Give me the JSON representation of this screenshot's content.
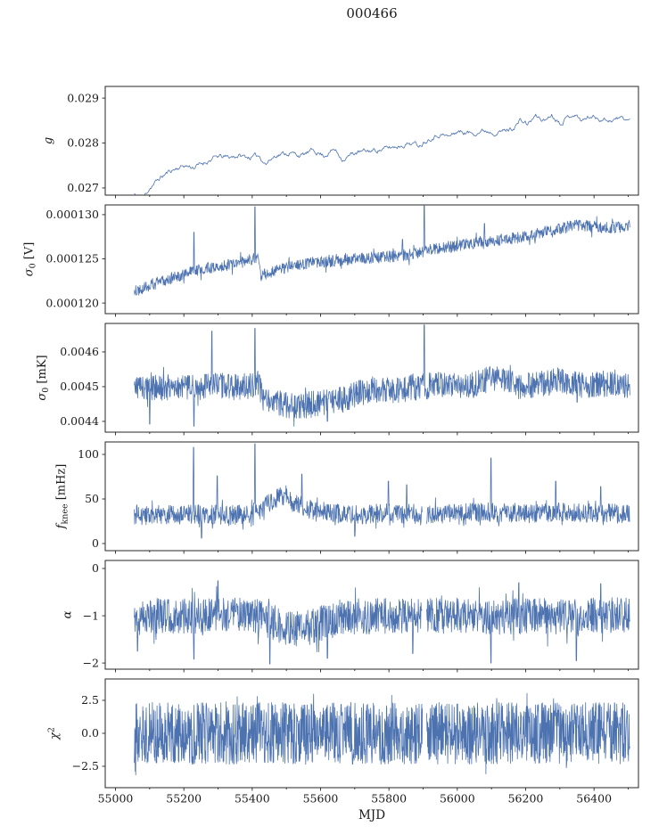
{
  "title": "000466",
  "chart_data": {
    "type": "line",
    "title": "000466",
    "xlabel": "MJD",
    "line_color": "#4c72b0",
    "axis_color": "#262626",
    "xlim": [
      54970,
      56530
    ],
    "data_range": [
      55055,
      56505
    ],
    "x_major_ticks": [
      55000,
      55200,
      55400,
      55600,
      55800,
      56000,
      56200,
      56400
    ],
    "x_minor_step": 100,
    "legend": "none",
    "grid": false,
    "panels": [
      {
        "ylabel": [
          {
            "t": "g",
            "it": 1
          }
        ],
        "ylim": [
          0.02684,
          0.02926
        ],
        "yticks": [
          {
            "v": 0.027,
            "label": "0.027"
          },
          {
            "v": 0.028,
            "label": "0.028"
          },
          {
            "v": 0.029,
            "label": "0.029"
          }
        ],
        "seed": 11,
        "samples": 620,
        "stroke": 0.8,
        "noise_amp": 5e-05,
        "noise_corr": 0.72,
        "tail_p": 0,
        "tail_mult": 1,
        "trend": [
          [
            55055,
            0.02688
          ],
          [
            55070,
            0.0267
          ],
          [
            55085,
            0.02682
          ],
          [
            55100,
            0.027
          ],
          [
            55130,
            0.02722
          ],
          [
            55160,
            0.02738
          ],
          [
            55200,
            0.0275
          ],
          [
            55230,
            0.02746
          ],
          [
            55270,
            0.0276
          ],
          [
            55300,
            0.0277
          ],
          [
            55330,
            0.02768
          ],
          [
            55360,
            0.02772
          ],
          [
            55395,
            0.02768
          ],
          [
            55420,
            0.02772
          ],
          [
            55440,
            0.02754
          ],
          [
            55470,
            0.02774
          ],
          [
            55510,
            0.02778
          ],
          [
            55545,
            0.02772
          ],
          [
            55580,
            0.02784
          ],
          [
            55610,
            0.02772
          ],
          [
            55640,
            0.02786
          ],
          [
            55665,
            0.02764
          ],
          [
            55700,
            0.02778
          ],
          [
            55740,
            0.02782
          ],
          [
            55780,
            0.02786
          ],
          [
            55820,
            0.02792
          ],
          [
            55860,
            0.028
          ],
          [
            55890,
            0.02796
          ],
          [
            55920,
            0.02812
          ],
          [
            55950,
            0.0282
          ],
          [
            55975,
            0.02814
          ],
          [
            56000,
            0.02826
          ],
          [
            56040,
            0.02822
          ],
          [
            56080,
            0.02828
          ],
          [
            56120,
            0.02824
          ],
          [
            56160,
            0.02832
          ],
          [
            56185,
            0.0285
          ],
          [
            56205,
            0.02842
          ],
          [
            56230,
            0.0286
          ],
          [
            56255,
            0.0285
          ],
          [
            56275,
            0.02864
          ],
          [
            56300,
            0.02846
          ],
          [
            56320,
            0.02856
          ],
          [
            56340,
            0.02866
          ],
          [
            56365,
            0.0285
          ],
          [
            56390,
            0.0286
          ],
          [
            56420,
            0.02854
          ],
          [
            56450,
            0.02851
          ],
          [
            56480,
            0.02856
          ],
          [
            56505,
            0.0285
          ]
        ],
        "spikes": [],
        "gaps": []
      },
      {
        "ylabel": [
          {
            "t": "σ",
            "it": 1
          },
          {
            "t": "0",
            "sub": 1
          },
          {
            "t": " [V]"
          }
        ],
        "ylim": [
          0.0001188,
          0.0001311
        ],
        "yticks": [
          {
            "v": 0.00012,
            "label": "0.000120"
          },
          {
            "v": 0.000125,
            "label": "0.000125"
          },
          {
            "v": 0.00013,
            "label": "0.000130"
          }
        ],
        "seed": 22,
        "samples": 1300,
        "stroke": 0.8,
        "noise_amp": 6.5e-07,
        "tail_p": 0.04,
        "tail_mult": 1.9,
        "trend": [
          [
            55055,
            0.0001213
          ],
          [
            55090,
            0.0001219
          ],
          [
            55130,
            0.0001224
          ],
          [
            55170,
            0.0001229
          ],
          [
            55210,
            0.0001234
          ],
          [
            55250,
            0.0001238
          ],
          [
            55290,
            0.0001241
          ],
          [
            55330,
            0.0001243
          ],
          [
            55370,
            0.0001246
          ],
          [
            55405,
            0.000125
          ],
          [
            55418,
            0.0001252
          ],
          [
            55424,
            0.0001231
          ],
          [
            55460,
            0.0001236
          ],
          [
            55500,
            0.000124
          ],
          [
            55540,
            0.0001244
          ],
          [
            55580,
            0.0001246
          ],
          [
            55620,
            0.0001247
          ],
          [
            55660,
            0.0001248
          ],
          [
            55700,
            0.000125
          ],
          [
            55740,
            0.0001251
          ],
          [
            55780,
            0.0001252
          ],
          [
            55820,
            0.0001253
          ],
          [
            55860,
            0.0001255
          ],
          [
            55900,
            0.0001258
          ],
          [
            55940,
            0.0001262
          ],
          [
            55980,
            0.0001264
          ],
          [
            56020,
            0.0001266
          ],
          [
            56060,
            0.0001268
          ],
          [
            56100,
            0.000127
          ],
          [
            56140,
            0.0001272
          ],
          [
            56180,
            0.0001274
          ],
          [
            56220,
            0.0001277
          ],
          [
            56260,
            0.0001281
          ],
          [
            56300,
            0.0001285
          ],
          [
            56340,
            0.0001288
          ],
          [
            56380,
            0.0001287
          ],
          [
            56420,
            0.0001286
          ],
          [
            56460,
            0.0001285
          ],
          [
            56505,
            0.0001288
          ]
        ],
        "spikes": [
          [
            55230,
            0.000128
          ],
          [
            55408,
            0.0001309
          ],
          [
            55840,
            0.0001272
          ],
          [
            55903,
            0.000131
          ],
          [
            56080,
            0.000129
          ]
        ],
        "gaps": []
      },
      {
        "ylabel": [
          {
            "t": "σ",
            "it": 1
          },
          {
            "t": "0",
            "sub": 1
          },
          {
            "t": " [mK]"
          }
        ],
        "ylim": [
          0.004369,
          0.004682
        ],
        "yticks": [
          {
            "v": 0.0044,
            "label": "0.0044"
          },
          {
            "v": 0.0045,
            "label": "0.0045"
          },
          {
            "v": 0.0046,
            "label": "0.0046"
          }
        ],
        "seed": 33,
        "samples": 1300,
        "stroke": 0.8,
        "noise_amp": 3.8e-05,
        "tail_p": 0.03,
        "tail_mult": 1.6,
        "trend": [
          [
            55055,
            0.0045
          ],
          [
            55120,
            0.004495
          ],
          [
            55180,
            0.0045
          ],
          [
            55240,
            0.004495
          ],
          [
            55300,
            0.004503
          ],
          [
            55360,
            0.004498
          ],
          [
            55405,
            0.004505
          ],
          [
            55418,
            0.00451
          ],
          [
            55428,
            0.004468
          ],
          [
            55460,
            0.004455
          ],
          [
            55500,
            0.004448
          ],
          [
            55540,
            0.004444
          ],
          [
            55580,
            0.00445
          ],
          [
            55620,
            0.004455
          ],
          [
            55660,
            0.004462
          ],
          [
            55700,
            0.004476
          ],
          [
            55740,
            0.00449
          ],
          [
            55780,
            0.004494
          ],
          [
            55820,
            0.00449
          ],
          [
            55860,
            0.004496
          ],
          [
            55900,
            0.0045
          ],
          [
            55950,
            0.004504
          ],
          [
            56000,
            0.0045
          ],
          [
            56050,
            0.004506
          ],
          [
            56090,
            0.00452
          ],
          [
            56120,
            0.004524
          ],
          [
            56150,
            0.00451
          ],
          [
            56190,
            0.0045
          ],
          [
            56230,
            0.004506
          ],
          [
            56270,
            0.004512
          ],
          [
            56300,
            0.00452
          ],
          [
            56330,
            0.004514
          ],
          [
            56370,
            0.004502
          ],
          [
            56410,
            0.004506
          ],
          [
            56450,
            0.00451
          ],
          [
            56505,
            0.004504
          ]
        ],
        "spikes": [
          [
            55100,
            0.004392
          ],
          [
            55230,
            0.004386
          ],
          [
            55282,
            0.00466
          ],
          [
            55408,
            0.004668
          ],
          [
            55620,
            0.0044
          ],
          [
            55903,
            0.004678
          ],
          [
            56350,
            0.004455
          ]
        ],
        "gaps": []
      },
      {
        "ylabel": [
          {
            "t": "f",
            "it": 1
          },
          {
            "t": "knee",
            "sub": 1
          },
          {
            "t": " [mHz]"
          }
        ],
        "ylim": [
          -8,
          114
        ],
        "yticks": [
          {
            "v": 0,
            "label": "0"
          },
          {
            "v": 50,
            "label": "50"
          },
          {
            "v": 100,
            "label": "100"
          }
        ],
        "seed": 44,
        "samples": 1300,
        "stroke": 0.8,
        "noise_amp": 11,
        "tail_p": 0.05,
        "tail_mult": 1.7,
        "trend": [
          [
            55055,
            31
          ],
          [
            55150,
            32
          ],
          [
            55250,
            33
          ],
          [
            55350,
            32
          ],
          [
            55420,
            36
          ],
          [
            55450,
            46
          ],
          [
            55480,
            54
          ],
          [
            55505,
            50
          ],
          [
            55530,
            44
          ],
          [
            55565,
            38
          ],
          [
            55600,
            34
          ],
          [
            55700,
            32
          ],
          [
            55800,
            34
          ],
          [
            55895,
            33
          ],
          [
            55912,
            33
          ],
          [
            56000,
            34
          ],
          [
            56100,
            35
          ],
          [
            56200,
            34
          ],
          [
            56300,
            35
          ],
          [
            56400,
            34
          ],
          [
            56505,
            33
          ]
        ],
        "spikes": [
          [
            55228,
            108
          ],
          [
            55252,
            6
          ],
          [
            55298,
            76
          ],
          [
            55408,
            112
          ],
          [
            55545,
            78
          ],
          [
            55700,
            8
          ],
          [
            55798,
            70
          ],
          [
            55852,
            66
          ],
          [
            56098,
            96
          ],
          [
            56288,
            70
          ],
          [
            56420,
            64
          ]
        ],
        "gaps": [
          [
            55898,
            55910
          ]
        ]
      },
      {
        "ylabel": [
          {
            "t": "α",
            "it": 1
          }
        ],
        "ylim": [
          -2.13,
          0.17
        ],
        "yticks": [
          {
            "v": 0,
            "label": "0"
          },
          {
            "v": -1,
            "label": "−1"
          },
          {
            "v": -2,
            "label": "−2"
          }
        ],
        "seed": 55,
        "samples": 1300,
        "stroke": 0.8,
        "noise_amp": 0.38,
        "tail_p": 0.05,
        "tail_mult": 1.7,
        "trend": [
          [
            55055,
            -1.0
          ],
          [
            55150,
            -1.0
          ],
          [
            55250,
            -1.04
          ],
          [
            55330,
            -0.96
          ],
          [
            55420,
            -1.02
          ],
          [
            55460,
            -1.14
          ],
          [
            55500,
            -1.26
          ],
          [
            55545,
            -1.3
          ],
          [
            55585,
            -1.2
          ],
          [
            55625,
            -1.1
          ],
          [
            55700,
            -1.02
          ],
          [
            55800,
            -1.0
          ],
          [
            55895,
            -1.0
          ],
          [
            55912,
            -1.0
          ],
          [
            56000,
            -1.0
          ],
          [
            56100,
            -1.04
          ],
          [
            56200,
            -1.0
          ],
          [
            56300,
            -1.02
          ],
          [
            56400,
            -1.0
          ],
          [
            56505,
            -0.96
          ]
        ],
        "spikes": [
          [
            55065,
            -1.75
          ],
          [
            55230,
            -1.92
          ],
          [
            55300,
            -0.26
          ],
          [
            55452,
            -2.02
          ],
          [
            55620,
            -1.9
          ],
          [
            55870,
            -1.8
          ],
          [
            56098,
            -2.0
          ],
          [
            56180,
            -0.3
          ],
          [
            56348,
            -1.95
          ],
          [
            56420,
            -0.32
          ]
        ],
        "gaps": [
          [
            55898,
            55910
          ]
        ]
      },
      {
        "ylabel": [
          {
            "t": "χ",
            "it": 1
          },
          {
            "t": "2",
            "sup": 1
          }
        ],
        "ylim": [
          -4.12,
          4.12
        ],
        "yticks": [
          {
            "v": 2.5,
            "label": "2.5"
          },
          {
            "v": 0,
            "label": "0.0"
          },
          {
            "v": -2.5,
            "label": "−2.5"
          }
        ],
        "seed": 66,
        "samples": 1700,
        "stroke": 0.8,
        "noise_amp": 2.35,
        "tail_p": 0.02,
        "tail_mult": 1.35,
        "trend": [
          [
            55055,
            0
          ],
          [
            56505,
            0
          ]
        ],
        "spikes": [],
        "gaps": [
          [
            55898,
            55910
          ]
        ]
      }
    ]
  }
}
